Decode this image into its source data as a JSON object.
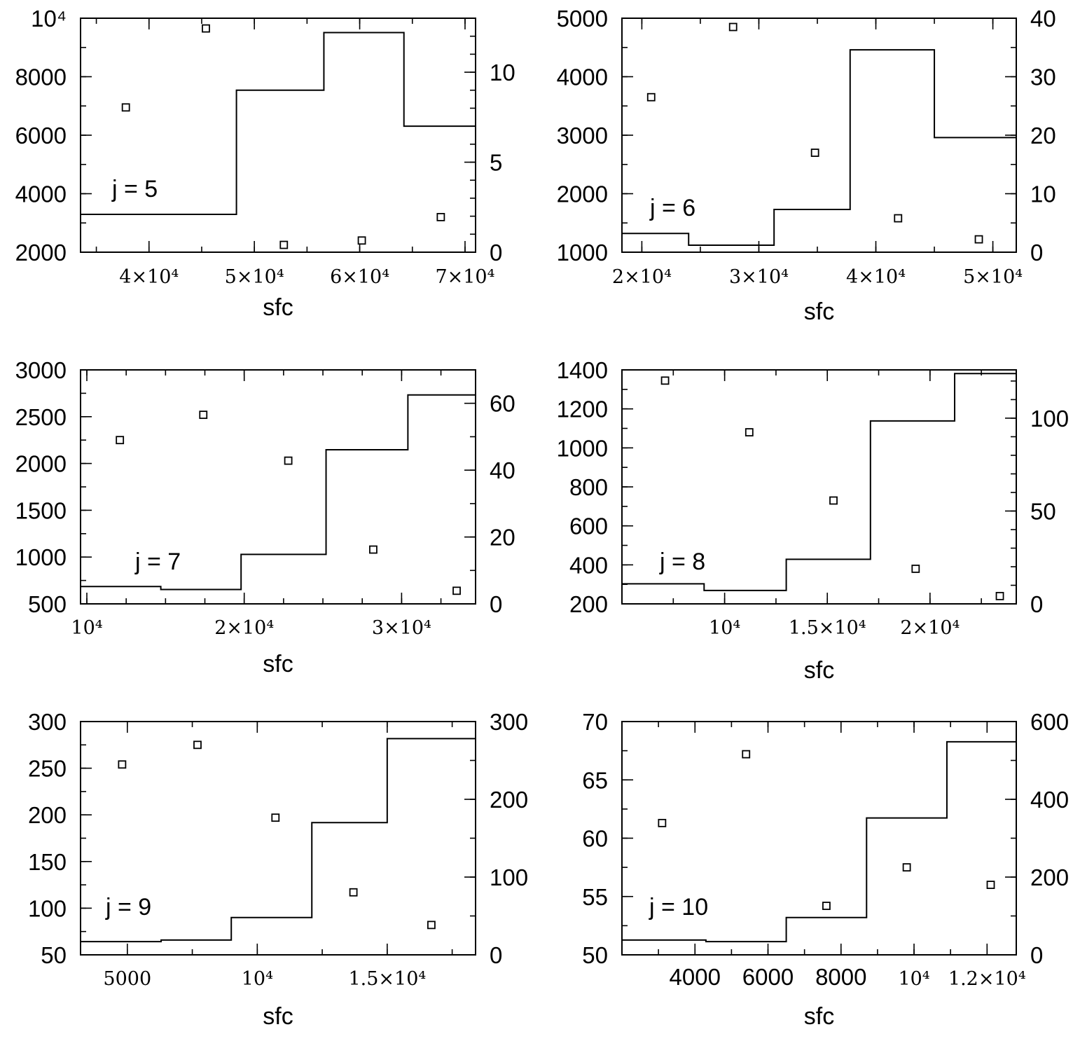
{
  "chart_data": [
    {
      "type": "scatter+step",
      "label": "j = 5",
      "xlabel": "sfc",
      "xlim": [
        33500,
        71000
      ],
      "ylim": [
        2000,
        10000
      ],
      "y2lim": [
        0,
        13
      ],
      "xticks": [
        {
          "v": 40000,
          "t": "4×10⁴"
        },
        {
          "v": 50000,
          "t": "5×10⁴"
        },
        {
          "v": 60000,
          "t": "6×10⁴"
        },
        {
          "v": 70000,
          "t": "7×10⁴"
        }
      ],
      "yticks": [
        {
          "v": 2000,
          "t": "2000"
        },
        {
          "v": 4000,
          "t": "4000"
        },
        {
          "v": 6000,
          "t": "6000"
        },
        {
          "v": 8000,
          "t": "8000"
        },
        {
          "v": 10000,
          "t": "10⁴"
        }
      ],
      "y2ticks": [
        {
          "v": 0,
          "t": "0"
        },
        {
          "v": 5,
          "t": "5"
        },
        {
          "v": 10,
          "t": "10"
        }
      ],
      "points": {
        "x": [
          37800,
          45400,
          52800,
          60200,
          67700
        ],
        "y": [
          6950,
          9650,
          2250,
          2400,
          3200
        ]
      },
      "histogram": {
        "edges": [
          33500,
          48300,
          56600,
          64200,
          71000
        ],
        "values": [
          2.1,
          9.0,
          12.2,
          7.0
        ]
      }
    },
    {
      "type": "scatter+step",
      "label": "j = 6",
      "xlabel": "sfc",
      "xlim": [
        18300,
        52000
      ],
      "ylim": [
        1000,
        5000
      ],
      "y2lim": [
        0,
        40
      ],
      "xticks": [
        {
          "v": 20000,
          "t": "2×10⁴"
        },
        {
          "v": 30000,
          "t": "3×10⁴"
        },
        {
          "v": 40000,
          "t": "4×10⁴"
        },
        {
          "v": 50000,
          "t": "5×10⁴"
        }
      ],
      "yticks": [
        {
          "v": 1000,
          "t": "1000"
        },
        {
          "v": 2000,
          "t": "2000"
        },
        {
          "v": 3000,
          "t": "3000"
        },
        {
          "v": 4000,
          "t": "4000"
        },
        {
          "v": 5000,
          "t": "5000"
        }
      ],
      "y2ticks": [
        {
          "v": 0,
          "t": "0"
        },
        {
          "v": 10,
          "t": "10"
        },
        {
          "v": 20,
          "t": "20"
        },
        {
          "v": 30,
          "t": "30"
        },
        {
          "v": 40,
          "t": "40"
        }
      ],
      "points": {
        "x": [
          20800,
          27800,
          34800,
          41900,
          48800
        ],
        "y": [
          3650,
          4850,
          2700,
          1580,
          1220
        ]
      },
      "histogram": {
        "edges": [
          18300,
          24000,
          31300,
          37800,
          45000,
          52000
        ],
        "values": [
          3.2,
          1.2,
          7.3,
          34.6,
          19.6
        ]
      }
    },
    {
      "type": "scatter+step",
      "label": "j = 7",
      "xlabel": "sfc",
      "xlim": [
        9600,
        34700
      ],
      "ylim": [
        500,
        3000
      ],
      "y2lim": [
        0,
        70
      ],
      "xticks": [
        {
          "v": 10000,
          "t": "10⁴"
        },
        {
          "v": 20000,
          "t": "2×10⁴"
        },
        {
          "v": 30000,
          "t": "3×10⁴"
        }
      ],
      "yticks": [
        {
          "v": 500,
          "t": "500"
        },
        {
          "v": 1000,
          "t": "1000"
        },
        {
          "v": 1500,
          "t": "1500"
        },
        {
          "v": 2000,
          "t": "2000"
        },
        {
          "v": 2500,
          "t": "2500"
        },
        {
          "v": 3000,
          "t": "3000"
        }
      ],
      "y2ticks": [
        {
          "v": 0,
          "t": "0"
        },
        {
          "v": 20,
          "t": "20"
        },
        {
          "v": 40,
          "t": "40"
        },
        {
          "v": 60,
          "t": "60"
        }
      ],
      "points": {
        "x": [
          12100,
          17400,
          22800,
          28200,
          33500
        ],
        "y": [
          2250,
          2520,
          2030,
          1080,
          640
        ]
      },
      "histogram": {
        "edges": [
          9600,
          14700,
          19800,
          25200,
          30400,
          34700
        ],
        "values": [
          5.2,
          4.3,
          14.8,
          46.1,
          62.5
        ]
      }
    },
    {
      "type": "scatter+step",
      "label": "j = 8",
      "xlabel": "sfc",
      "xlim": [
        5000,
        24200
      ],
      "ylim": [
        200,
        1400
      ],
      "y2lim": [
        0,
        126
      ],
      "xticks": [
        {
          "v": 10000,
          "t": "10⁴"
        },
        {
          "v": 15000,
          "t": "1.5×10⁴"
        },
        {
          "v": 20000,
          "t": "2×10⁴"
        }
      ],
      "yticks": [
        {
          "v": 200,
          "t": "200"
        },
        {
          "v": 400,
          "t": "400"
        },
        {
          "v": 600,
          "t": "600"
        },
        {
          "v": 800,
          "t": "800"
        },
        {
          "v": 1000,
          "t": "1000"
        },
        {
          "v": 1200,
          "t": "1200"
        },
        {
          "v": 1400,
          "t": "1400"
        }
      ],
      "y2ticks": [
        {
          "v": 0,
          "t": "0"
        },
        {
          "v": 50,
          "t": "50"
        },
        {
          "v": 100,
          "t": "100"
        }
      ],
      "points": {
        "x": [
          7100,
          11200,
          15300,
          19300,
          23400
        ],
        "y": [
          1345,
          1080,
          730,
          380,
          240
        ]
      },
      "histogram": {
        "edges": [
          5000,
          9000,
          13000,
          17100,
          21200,
          24200
        ],
        "values": [
          10.8,
          7.2,
          24.0,
          98.5,
          124.0
        ]
      }
    },
    {
      "type": "scatter+step",
      "label": "j = 9",
      "xlabel": "sfc",
      "xlim": [
        3200,
        18400
      ],
      "ylim": [
        50,
        300
      ],
      "y2lim": [
        0,
        300
      ],
      "xticks": [
        {
          "v": 5000,
          "t": "5000"
        },
        {
          "v": 10000,
          "t": "10⁴"
        },
        {
          "v": 15000,
          "t": "1.5×10⁴"
        }
      ],
      "yticks": [
        {
          "v": 50,
          "t": "50"
        },
        {
          "v": 100,
          "t": "100"
        },
        {
          "v": 150,
          "t": "150"
        },
        {
          "v": 200,
          "t": "200"
        },
        {
          "v": 250,
          "t": "250"
        },
        {
          "v": 300,
          "t": "300"
        }
      ],
      "y2ticks": [
        {
          "v": 0,
          "t": "0"
        },
        {
          "v": 100,
          "t": "100"
        },
        {
          "v": 200,
          "t": "200"
        },
        {
          "v": 300,
          "t": "300"
        }
      ],
      "points": {
        "x": [
          4800,
          7700,
          10700,
          13700,
          16700
        ],
        "y": [
          254,
          275,
          197,
          117,
          82
        ]
      },
      "histogram": {
        "edges": [
          3200,
          6300,
          9000,
          12100,
          15000,
          18400
        ],
        "values": [
          17,
          19,
          48,
          170,
          278
        ]
      }
    },
    {
      "type": "scatter+step",
      "label": "j = 10",
      "xlabel": "sfc",
      "xlim": [
        2000,
        12800
      ],
      "ylim": [
        50,
        70
      ],
      "y2lim": [
        0,
        600
      ],
      "xticks": [
        {
          "v": 4000,
          "t": "4000",
          "plain": true
        },
        {
          "v": 6000,
          "t": "6000",
          "plain": true
        },
        {
          "v": 8000,
          "t": "8000",
          "plain": true
        },
        {
          "v": 10000,
          "t": "10⁴"
        },
        {
          "v": 12000,
          "t": "1.2×10⁴"
        }
      ],
      "yticks": [
        {
          "v": 50,
          "t": "50"
        },
        {
          "v": 55,
          "t": "55"
        },
        {
          "v": 60,
          "t": "60"
        },
        {
          "v": 65,
          "t": "65"
        },
        {
          "v": 70,
          "t": "70"
        }
      ],
      "y2ticks": [
        {
          "v": 0,
          "t": "0"
        },
        {
          "v": 200,
          "t": "200"
        },
        {
          "v": 400,
          "t": "400"
        },
        {
          "v": 600,
          "t": "600"
        }
      ],
      "points": {
        "x": [
          3100,
          5400,
          7600,
          9800,
          12100
        ],
        "y": [
          61.3,
          67.2,
          54.2,
          57.5,
          56.0
        ]
      },
      "histogram": {
        "edges": [
          2000,
          4300,
          6500,
          8700,
          10900,
          12800
        ],
        "values": [
          38,
          34,
          96,
          352,
          548
        ]
      }
    }
  ]
}
